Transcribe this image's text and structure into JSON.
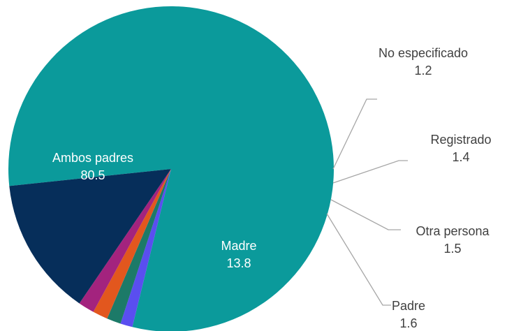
{
  "chart_data": {
    "type": "pie",
    "title": "",
    "slices": [
      {
        "name": "Ambos padres",
        "value": 80.5,
        "color": "#0b9a9b",
        "label_style": "inside"
      },
      {
        "name": "No especificado",
        "value": 1.2,
        "color": "#5a4ef0",
        "label_style": "callout"
      },
      {
        "name": "Registrado",
        "value": 1.4,
        "color": "#1c7a68",
        "label_style": "callout"
      },
      {
        "name": "Otra persona",
        "value": 1.5,
        "color": "#e2571e",
        "label_style": "callout"
      },
      {
        "name": "Padre",
        "value": 1.6,
        "color": "#a3237e",
        "label_style": "callout"
      },
      {
        "name": "Madre",
        "value": 13.8,
        "color": "#062e5a",
        "label_style": "inside"
      }
    ],
    "legend": "none"
  }
}
